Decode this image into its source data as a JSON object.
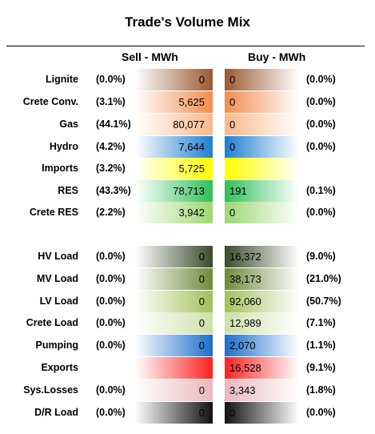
{
  "title": "Trade's Volume Mix",
  "headers": {
    "sell": "Sell - MWh",
    "buy": "Buy - MWh"
  },
  "rows": [
    {
      "label": "Lignite",
      "sell_pct": "(0.0%)",
      "sell": "0",
      "buy": "0",
      "buy_pct": "(0.0%)",
      "color": "#9a5a32"
    },
    {
      "label": "Crete Conv.",
      "sell_pct": "(3.1%)",
      "sell": "5,625",
      "buy": "0",
      "buy_pct": "(0.0%)",
      "color": "#f28c4e"
    },
    {
      "label": "Gas",
      "sell_pct": "(44.1%)",
      "sell": "80,077",
      "buy": "0",
      "buy_pct": "(0.0%)",
      "color": "#f7b98c"
    },
    {
      "label": "Hydro",
      "sell_pct": "(4.2%)",
      "sell": "7,644",
      "buy": "0",
      "buy_pct": "(0.0%)",
      "color": "#1f7fd0"
    },
    {
      "label": "Imports",
      "sell_pct": "(3.2%)",
      "sell": "5,725",
      "buy": "",
      "buy_pct": "",
      "color": "#ffff00"
    },
    {
      "label": "RES",
      "sell_pct": "(43.3%)",
      "sell": "78,713",
      "buy": "191",
      "buy_pct": "(0.1%)",
      "color": "#2fbf5a"
    },
    {
      "label": "Crete RES",
      "sell_pct": "(2.2%)",
      "sell": "3,942",
      "buy": "0",
      "buy_pct": "(0.0%)",
      "color": "#9fd873"
    },
    {
      "label": "HV Load",
      "sell_pct": "(0.0%)",
      "sell": "0",
      "buy": "16,372",
      "buy_pct": "(9.0%)",
      "color": "#3a4a2c"
    },
    {
      "label": "MV Load",
      "sell_pct": "(0.0%)",
      "sell": "0",
      "buy": "38,173",
      "buy_pct": "(21.0%)",
      "color": "#6f8a3a"
    },
    {
      "label": "LV Load",
      "sell_pct": "(0.0%)",
      "sell": "0",
      "buy": "92,060",
      "buy_pct": "(50.7%)",
      "color": "#a3c05a"
    },
    {
      "label": "Crete Load",
      "sell_pct": "(0.0%)",
      "sell": "0",
      "buy": "12,989",
      "buy_pct": "(7.1%)",
      "color": "#cfe0a9"
    },
    {
      "label": "Pumping",
      "sell_pct": "(0.0%)",
      "sell": "0",
      "buy": "2,070",
      "buy_pct": "(1.1%)",
      "color": "#1a6fcc"
    },
    {
      "label": "Exports",
      "sell_pct": "",
      "sell": "",
      "buy": "16,528",
      "buy_pct": "(9.1%)",
      "color": "#ff2020"
    },
    {
      "label": "Sys.Losses",
      "sell_pct": "(0.0%)",
      "sell": "0",
      "buy": "3,343",
      "buy_pct": "(1.8%)",
      "color": "#e9b8bd"
    },
    {
      "label": "D/R Load",
      "sell_pct": "(0.0%)",
      "sell": "0",
      "buy": "0",
      "buy_pct": "(0.0%)",
      "color": "#111111"
    }
  ]
}
